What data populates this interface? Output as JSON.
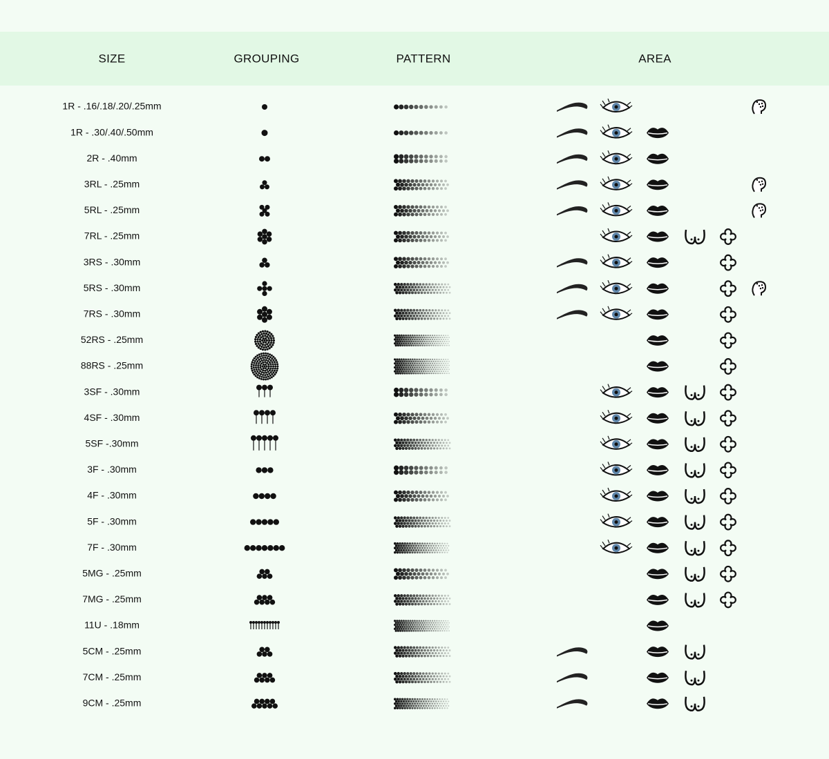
{
  "header": {
    "columns": [
      "SIZE",
      "GROUPING",
      "PATTERN",
      "AREA"
    ]
  },
  "table": {
    "rows": [
      {
        "size": "1R - .16/.18/.20/.25mm",
        "area": [
          true,
          true,
          false,
          false,
          false,
          true
        ]
      },
      {
        "size": "1R - .30/.40/.50mm",
        "area": [
          true,
          true,
          true,
          false,
          false,
          false
        ]
      },
      {
        "size": "2R - .40mm",
        "area": [
          true,
          true,
          true,
          false,
          false,
          false
        ]
      },
      {
        "size": "3RL - .25mm",
        "area": [
          true,
          true,
          true,
          false,
          false,
          true
        ]
      },
      {
        "size": "5RL - .25mm",
        "area": [
          true,
          true,
          true,
          false,
          false,
          true
        ]
      },
      {
        "size": "7RL - .25mm",
        "area": [
          false,
          true,
          true,
          true,
          true,
          false
        ]
      },
      {
        "size": "3RS - .30mm",
        "area": [
          true,
          true,
          true,
          false,
          true,
          false
        ]
      },
      {
        "size": "5RS - .30mm",
        "area": [
          true,
          true,
          true,
          false,
          true,
          true
        ]
      },
      {
        "size": "7RS - .30mm",
        "area": [
          true,
          true,
          true,
          false,
          true,
          false
        ]
      },
      {
        "size": "52RS - .25mm",
        "area": [
          false,
          false,
          true,
          false,
          true,
          false
        ]
      },
      {
        "size": "88RS - .25mm",
        "area": [
          false,
          false,
          true,
          false,
          true,
          false
        ]
      },
      {
        "size": "3SF - .30mm",
        "area": [
          false,
          true,
          true,
          true,
          true,
          false
        ]
      },
      {
        "size": "4SF - .30mm",
        "area": [
          false,
          true,
          true,
          true,
          true,
          false
        ]
      },
      {
        "size": "5SF -.30mm",
        "area": [
          false,
          true,
          true,
          true,
          true,
          false
        ]
      },
      {
        "size": "3F - .30mm",
        "area": [
          false,
          true,
          true,
          true,
          true,
          false
        ]
      },
      {
        "size": "4F - .30mm",
        "area": [
          false,
          true,
          true,
          true,
          true,
          false
        ]
      },
      {
        "size": "5F - .30mm",
        "area": [
          false,
          true,
          true,
          true,
          true,
          false
        ]
      },
      {
        "size": "7F - .30mm",
        "area": [
          false,
          true,
          true,
          true,
          true,
          false
        ]
      },
      {
        "size": "5MG - .25mm",
        "area": [
          false,
          false,
          true,
          true,
          true,
          false
        ]
      },
      {
        "size": "7MG - .25mm",
        "area": [
          false,
          false,
          true,
          true,
          true,
          false
        ]
      },
      {
        "size": "11U - .18mm",
        "area": [
          false,
          false,
          true,
          false,
          false,
          false
        ]
      },
      {
        "size": "5CM - .25mm",
        "area": [
          true,
          false,
          true,
          true,
          false,
          false
        ]
      },
      {
        "size": "7CM - .25mm",
        "area": [
          true,
          false,
          true,
          true,
          false,
          false
        ]
      },
      {
        "size": "9CM - .25mm",
        "area": [
          true,
          false,
          true,
          true,
          false,
          false
        ]
      }
    ]
  }
}
